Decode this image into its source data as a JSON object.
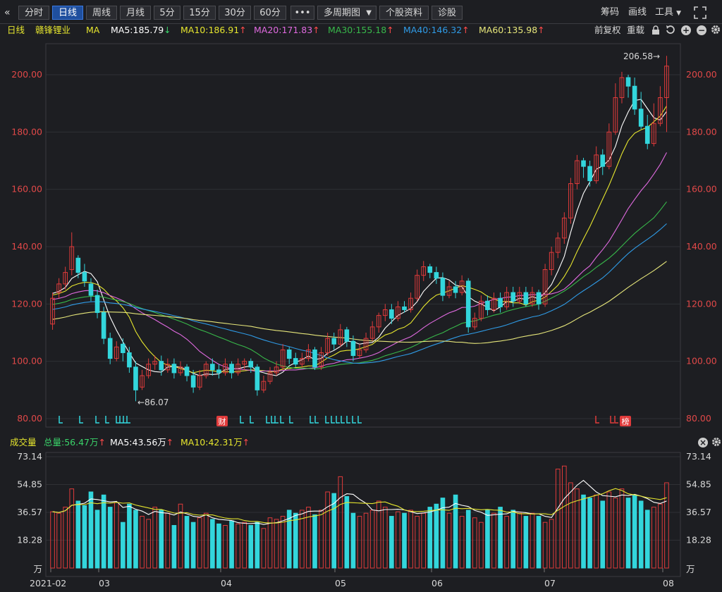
{
  "toolbar": {
    "collapse_icon": "«",
    "tabs": [
      "分时",
      "日线",
      "周线",
      "月线",
      "5分",
      "15分",
      "30分",
      "60分",
      "•••"
    ],
    "active_tab": "日线",
    "multi_period": "多周期图",
    "stock_info": "个股资料",
    "diagnose": "诊股",
    "chips": "筹码",
    "draw_line": "画线",
    "tools": "工具",
    "expand_icon": "expand-icon"
  },
  "ma_row": {
    "period": "日线",
    "stock_name": "赣锋锂业",
    "ma_label": "MA",
    "ma5": "MA5:185.79",
    "ma10": "MA10:186.91",
    "ma20": "MA20:171.83",
    "ma30": "MA30:155.18",
    "ma40": "MA40:146.32",
    "ma60": "MA60:135.98",
    "adjust": "前复权",
    "reload": "重载"
  },
  "vol_row": {
    "title": "成交量",
    "total": "总量:56.47万",
    "ma5": "MA5:43.56万",
    "ma10": "MA10:42.31万"
  },
  "colors": {
    "up": "#e03b3b",
    "down": "#33d6dc",
    "ma5": "#ffffff",
    "ma10": "#e6e62e",
    "ma20": "#e06ae0",
    "ma30": "#38b84a",
    "ma40": "#2f9be6",
    "ma60": "#e6e67a"
  },
  "chart_data": {
    "type": "candlestick",
    "price_axis": {
      "min": 80,
      "max": 206.58,
      "ticks": [
        "200.00",
        "180.00",
        "160.00",
        "140.00",
        "120.00",
        "100.00",
        "80.00"
      ]
    },
    "high_label": "206.58",
    "low_label": "86.07",
    "x_labels": [
      "2021-02",
      "03",
      "04",
      "05",
      "06",
      "07",
      "08"
    ],
    "marks": [
      "财",
      "榜"
    ],
    "candles": [
      [
        113,
        122,
        111,
        124
      ],
      [
        124,
        127,
        122,
        129
      ],
      [
        127,
        131,
        125,
        133
      ],
      [
        132,
        140,
        130,
        145
      ],
      [
        136,
        131,
        129,
        137
      ],
      [
        131,
        128,
        126,
        134
      ],
      [
        127,
        123,
        121,
        129
      ],
      [
        123,
        117,
        115,
        125
      ],
      [
        117,
        108,
        106,
        119
      ],
      [
        108,
        101,
        99,
        110
      ],
      [
        101,
        105,
        100,
        107
      ],
      [
        106,
        103,
        100,
        108
      ],
      [
        103,
        98,
        96,
        105
      ],
      [
        98,
        90,
        86.07,
        100
      ],
      [
        91,
        95,
        90,
        97
      ],
      [
        95,
        99,
        94,
        101
      ],
      [
        99,
        100,
        97,
        102
      ],
      [
        100,
        97,
        95,
        102
      ],
      [
        97,
        99,
        96,
        101
      ],
      [
        99,
        96,
        94,
        101
      ],
      [
        96,
        98,
        95,
        100
      ],
      [
        98,
        95,
        93,
        99
      ],
      [
        95,
        91,
        89,
        97
      ],
      [
        91,
        95,
        90,
        97
      ],
      [
        95,
        99,
        94,
        100
      ],
      [
        99,
        97,
        95,
        101
      ],
      [
        97,
        96,
        94,
        99
      ],
      [
        96,
        99,
        95,
        101
      ],
      [
        99,
        96,
        94,
        100
      ],
      [
        96,
        99,
        95,
        101
      ],
      [
        99,
        100,
        97,
        101
      ],
      [
        100,
        98,
        96,
        101
      ],
      [
        98,
        90,
        88,
        99
      ],
      [
        90,
        93,
        89,
        95
      ],
      [
        93,
        96,
        92,
        98
      ],
      [
        96,
        98,
        95,
        100
      ],
      [
        98,
        104,
        97,
        106
      ],
      [
        104,
        101,
        99,
        105
      ],
      [
        101,
        99,
        98,
        103
      ],
      [
        99,
        101,
        98,
        103
      ],
      [
        101,
        104,
        100,
        106
      ],
      [
        104,
        98,
        97,
        105
      ],
      [
        98,
        103,
        97,
        105
      ],
      [
        103,
        108,
        102,
        110
      ],
      [
        108,
        106,
        104,
        110
      ],
      [
        106,
        111,
        105,
        113
      ],
      [
        111,
        107,
        105,
        112
      ],
      [
        107,
        102,
        100,
        109
      ],
      [
        102,
        104,
        101,
        106
      ],
      [
        104,
        108,
        103,
        110
      ],
      [
        108,
        112,
        107,
        114
      ],
      [
        112,
        116,
        110,
        117
      ],
      [
        116,
        118,
        114,
        120
      ],
      [
        118,
        115,
        113,
        120
      ],
      [
        115,
        119,
        114,
        121
      ],
      [
        119,
        118,
        117,
        121
      ],
      [
        118,
        122,
        117,
        124
      ],
      [
        122,
        130,
        121,
        132
      ],
      [
        130,
        133,
        128,
        135
      ],
      [
        133,
        131,
        129,
        134
      ],
      [
        131,
        129,
        127,
        133
      ],
      [
        129,
        123,
        121,
        131
      ],
      [
        123,
        126,
        122,
        128
      ],
      [
        126,
        124,
        122,
        128
      ],
      [
        124,
        128,
        123,
        130
      ],
      [
        128,
        112,
        110,
        129
      ],
      [
        112,
        115,
        111,
        117
      ],
      [
        115,
        121,
        114,
        123
      ],
      [
        121,
        118,
        116,
        123
      ],
      [
        118,
        122,
        117,
        124
      ],
      [
        122,
        119,
        117,
        124
      ],
      [
        119,
        124,
        118,
        126
      ],
      [
        124,
        121,
        119,
        126
      ],
      [
        121,
        124,
        120,
        126
      ],
      [
        124,
        120,
        119,
        126
      ],
      [
        120,
        124,
        119,
        126
      ],
      [
        124,
        120,
        118,
        125
      ],
      [
        120,
        132,
        119,
        134
      ],
      [
        132,
        138,
        130,
        140
      ],
      [
        138,
        143,
        136,
        145
      ],
      [
        143,
        150,
        141,
        152
      ],
      [
        150,
        162,
        148,
        164
      ],
      [
        162,
        170,
        160,
        172
      ],
      [
        170,
        168,
        164,
        171
      ],
      [
        168,
        163,
        161,
        170
      ],
      [
        163,
        172,
        162,
        175
      ],
      [
        172,
        168,
        165,
        174
      ],
      [
        168,
        180,
        167,
        183
      ],
      [
        180,
        192,
        179,
        197
      ],
      [
        192,
        199,
        190,
        201
      ],
      [
        199,
        196,
        192,
        200
      ],
      [
        196,
        188,
        186,
        199
      ],
      [
        188,
        182,
        181,
        194
      ],
      [
        182,
        176,
        174,
        186
      ],
      [
        176,
        183,
        175,
        190
      ],
      [
        183,
        192,
        182,
        196
      ],
      [
        192,
        203,
        180,
        206.58
      ]
    ],
    "volume_axis": {
      "min": 0,
      "max": 73.14,
      "ticks": [
        "73.14",
        "54.85",
        "36.57",
        "18.28",
        "万"
      ]
    },
    "volumes": [
      37,
      36,
      40,
      52,
      44,
      41,
      50,
      38,
      48,
      40,
      43,
      30,
      42,
      38,
      34,
      32,
      40,
      38,
      36,
      28,
      42,
      34,
      30,
      33,
      36,
      32,
      29,
      28,
      31,
      29,
      30,
      28,
      30,
      26,
      33,
      32,
      34,
      38,
      36,
      38,
      40,
      35,
      38,
      50,
      49,
      60,
      47,
      36,
      34,
      36,
      38,
      44,
      40,
      34,
      37,
      36,
      38,
      34,
      36,
      40,
      42,
      46,
      36,
      48,
      34,
      38,
      33,
      30,
      38,
      36,
      40,
      34,
      38,
      36,
      34,
      36,
      34,
      30,
      32,
      65,
      67,
      56,
      52,
      48,
      46,
      48,
      44,
      50,
      46,
      52,
      46,
      48,
      44,
      38,
      40,
      42,
      56
    ],
    "ma5_start": 124,
    "ma_last": {
      "ma5": 185.79,
      "ma10": 186.91,
      "ma20": 171.83,
      "ma30": 155.18,
      "ma40": 146.32,
      "ma60": 135.98
    }
  }
}
